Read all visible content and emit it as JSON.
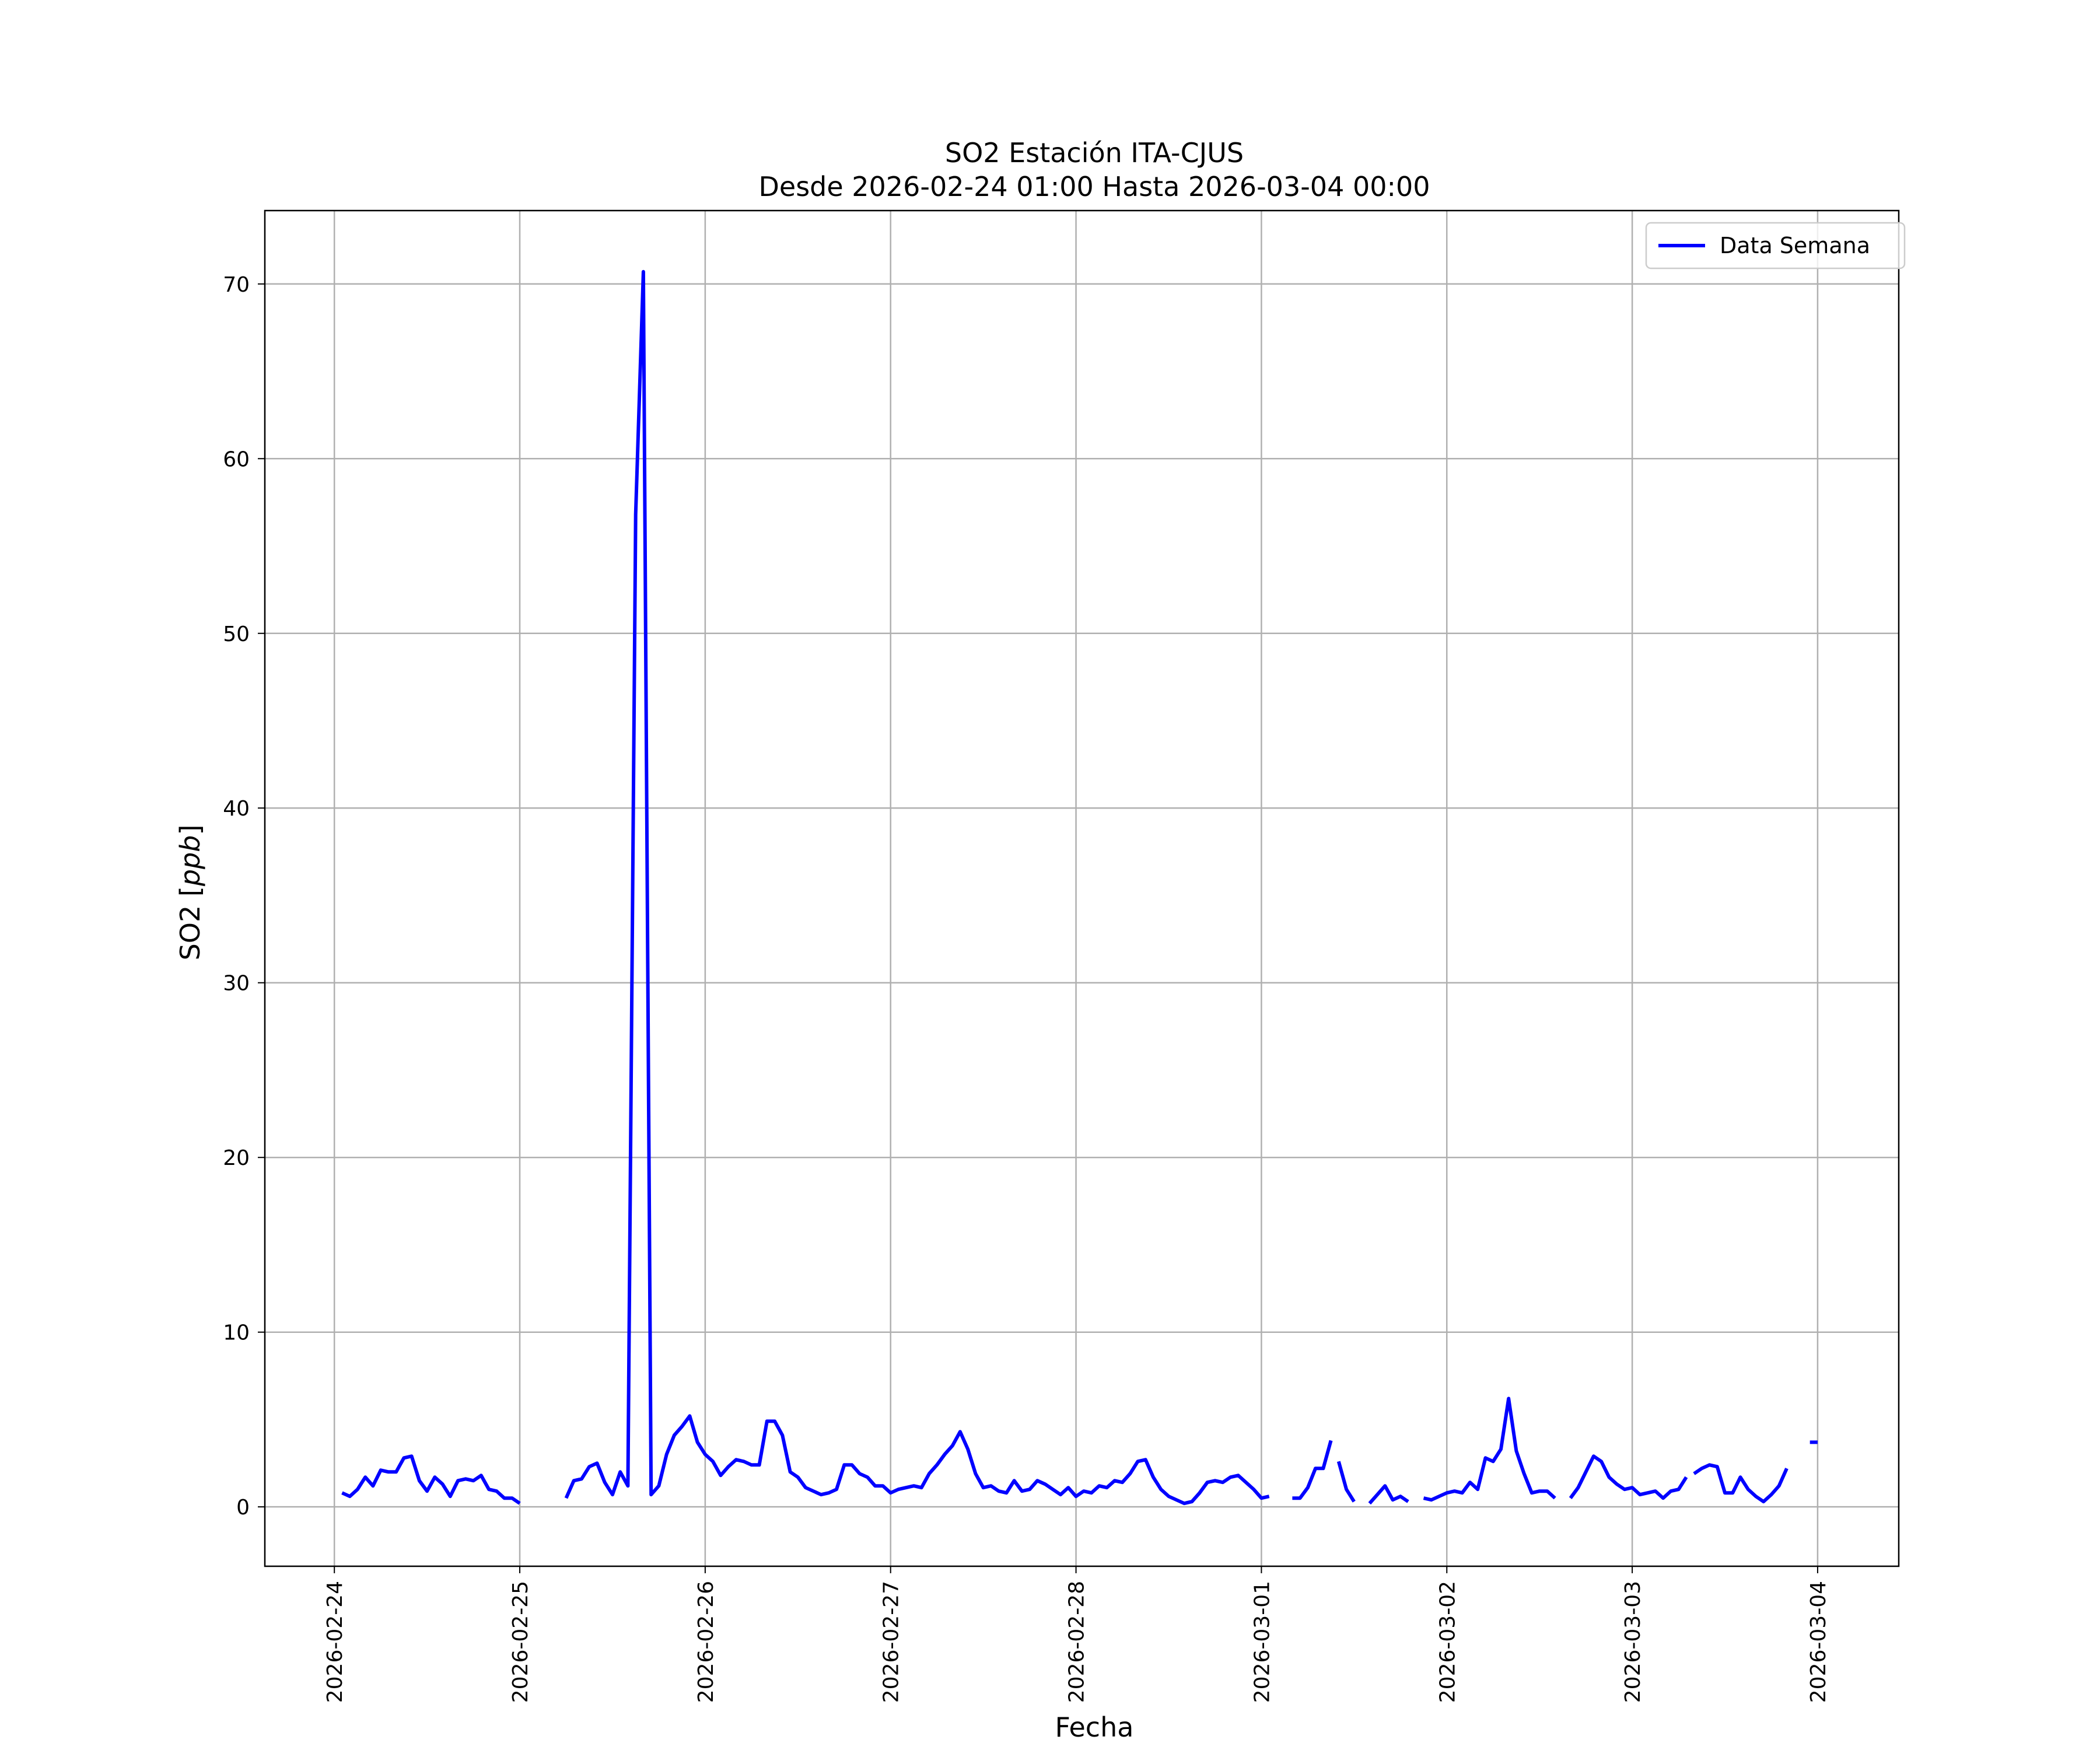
{
  "chart_data": {
    "type": "line",
    "title": "SO2 Estación ITA-CJUS",
    "subtitle": "Desde 2026-02-24 01:00 Hasta 2026-03-04 00:00",
    "xlabel": "Fecha",
    "ylabel_text": "SO2 [",
    "ylabel_unit": "ppb",
    "ylabel_close": "]",
    "ylim": [
      -3.4,
      74.2
    ],
    "xlim": [
      "2026-02-23 15:00",
      "2026-03-04 10:30"
    ],
    "y_ticks": [
      0,
      10,
      20,
      30,
      40,
      50,
      60,
      70
    ],
    "x_ticks": [
      "2026-02-24",
      "2026-02-25",
      "2026-02-26",
      "2026-02-27",
      "2026-02-28",
      "2026-03-01",
      "2026-03-02",
      "2026-03-03",
      "2026-03-04"
    ],
    "grid": true,
    "legend_position": "top-right",
    "colors": {
      "line": "#0000ff",
      "grid": "#b0b0b0"
    },
    "series": [
      {
        "name": "Data Semana",
        "segments": [
          {
            "start": "2026-02-24 01:00",
            "values": [
              0.8,
              0.6,
              1.0,
              1.7,
              1.2,
              2.1,
              2.0,
              2.0,
              2.8,
              2.9,
              1.5,
              0.9,
              1.7,
              1.3,
              0.6,
              1.5,
              1.6,
              1.5,
              1.8,
              1.0,
              0.9,
              0.5,
              0.5,
              0.2
            ]
          },
          {
            "start": "2026-02-25 06:00",
            "values": [
              0.5,
              1.5,
              1.6,
              2.3,
              2.5,
              1.4,
              0.7,
              2.0,
              1.2,
              56.8,
              70.7,
              0.7,
              1.2,
              3.0,
              4.1,
              4.6,
              5.2,
              3.7,
              3.0,
              2.6,
              1.8,
              2.3,
              2.7,
              2.6,
              2.4,
              2.4,
              4.9,
              4.9,
              4.1,
              2.0,
              1.7,
              1.1,
              0.9,
              0.7,
              0.8,
              1.0,
              2.4,
              2.4,
              1.9,
              1.7,
              1.2,
              1.2,
              0.8,
              1.0,
              1.1,
              1.2,
              1.1,
              1.9,
              2.4,
              3.0,
              3.5,
              4.3,
              3.3,
              1.9,
              1.1,
              1.2,
              0.9,
              0.8,
              1.5,
              0.9,
              1.0,
              1.5,
              1.3,
              1.0,
              0.7,
              1.1,
              0.6,
              0.9,
              0.8,
              1.2,
              1.1,
              1.5,
              1.4,
              1.9,
              2.6,
              2.7,
              1.7,
              1.0,
              0.6,
              0.4,
              0.2,
              0.3,
              0.8,
              1.4,
              1.5,
              1.4,
              1.7,
              1.8,
              1.4,
              1.0,
              0.5,
              0.6
            ]
          },
          {
            "start": "2026-03-01 04:00",
            "values": [
              0.5,
              0.5,
              1.1,
              2.2,
              2.2,
              3.8
            ]
          },
          {
            "start": "2026-03-01 10:00",
            "values": [
              2.6,
              1.0,
              0.3
            ]
          },
          {
            "start": "2026-03-01 14:00",
            "values": [
              0.2,
              0.7,
              1.2,
              0.4,
              0.6,
              0.3
            ]
          },
          {
            "start": "2026-03-01 21:00",
            "values": [
              0.5,
              0.4,
              0.6,
              0.8,
              0.9,
              0.8,
              1.4,
              1.0,
              2.8,
              2.6,
              3.3,
              6.2,
              3.2,
              1.9,
              0.8,
              0.9,
              0.9,
              0.5
            ]
          },
          {
            "start": "2026-03-02 16:00",
            "values": [
              0.5,
              1.1,
              2.0,
              2.9,
              2.6,
              1.7,
              1.3,
              1.0,
              1.1,
              0.7,
              0.8,
              0.9,
              0.5,
              0.9,
              1.0,
              1.7
            ]
          },
          {
            "start": "2026-03-03 08:00",
            "values": [
              1.9,
              2.2,
              2.4,
              2.3,
              0.8,
              0.8,
              1.7,
              1.0,
              0.6,
              0.3,
              0.7,
              1.2,
              2.2
            ]
          },
          {
            "start": "2026-03-03 23:00",
            "values": [
              3.7,
              3.7
            ]
          }
        ]
      }
    ]
  }
}
